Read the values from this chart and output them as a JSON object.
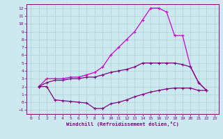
{
  "bg_color": "#cbe9ef",
  "grid_color": "#b0d0d8",
  "line_color_dark": "#800080",
  "line_color_bright": "#cc00cc",
  "xlabel": "Windchill (Refroidissement éolien,°C)",
  "xlim": [
    -0.5,
    23.5
  ],
  "ylim": [
    -1.5,
    12.5
  ],
  "xticks": [
    0,
    1,
    2,
    3,
    4,
    5,
    6,
    7,
    8,
    9,
    10,
    11,
    12,
    13,
    14,
    15,
    16,
    17,
    18,
    19,
    20,
    21,
    22,
    23
  ],
  "yticks": [
    -1,
    0,
    1,
    2,
    3,
    4,
    5,
    6,
    7,
    8,
    9,
    10,
    11,
    12
  ],
  "series1_x": [
    1,
    2,
    3,
    4,
    5,
    6,
    7,
    8,
    9,
    10,
    11,
    12,
    13,
    14,
    15,
    16,
    17,
    18,
    19,
    20,
    21,
    22
  ],
  "series1_y": [
    2.0,
    3.0,
    3.0,
    3.0,
    3.2,
    3.2,
    3.5,
    3.8,
    4.5,
    6.0,
    7.0,
    8.0,
    9.0,
    10.5,
    12.0,
    12.0,
    11.5,
    8.5,
    8.5,
    4.5,
    2.5,
    1.5
  ],
  "series2_x": [
    1,
    2,
    3,
    4,
    5,
    6,
    7,
    8,
    9,
    10,
    11,
    12,
    13,
    14,
    15,
    16,
    17,
    18,
    19,
    20,
    21,
    22
  ],
  "series2_y": [
    2.0,
    2.5,
    2.8,
    2.8,
    3.0,
    3.0,
    3.2,
    3.2,
    3.5,
    3.8,
    4.0,
    4.2,
    4.5,
    5.0,
    5.0,
    5.0,
    5.0,
    5.0,
    4.8,
    4.5,
    2.5,
    1.5
  ],
  "series3_x": [
    1,
    2,
    3,
    4,
    5,
    6,
    7,
    8,
    9,
    10,
    11,
    12,
    13,
    14,
    15,
    16,
    17,
    18,
    19,
    20,
    21,
    22
  ],
  "series3_y": [
    2.0,
    2.0,
    0.3,
    0.2,
    0.1,
    0.0,
    -0.1,
    -0.8,
    -0.8,
    -0.2,
    0.0,
    0.3,
    0.7,
    1.0,
    1.3,
    1.5,
    1.7,
    1.8,
    1.8,
    1.8,
    1.5,
    1.5
  ],
  "marker": "+",
  "markersize": 3,
  "markeredgewidth": 0.8,
  "linewidth": 0.9
}
